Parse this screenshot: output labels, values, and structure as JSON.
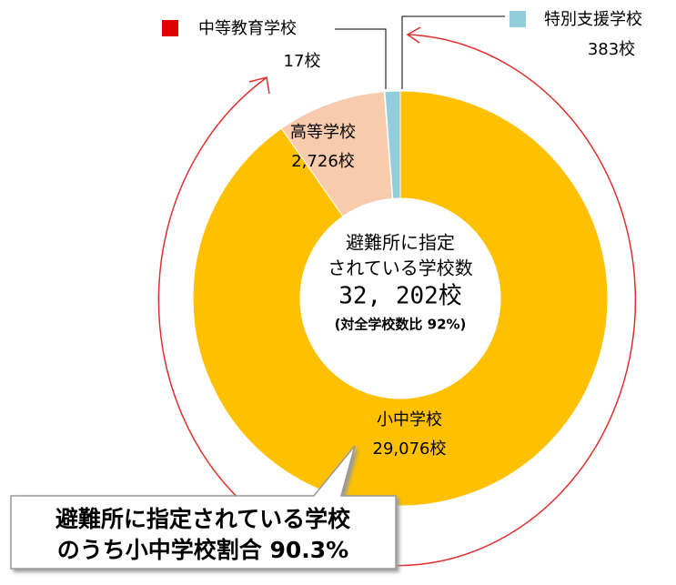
{
  "chart_data": {
    "type": "pie",
    "categories": [
      "小中学校",
      "高等学校",
      "中等教育学校",
      "特別支援学校"
    ],
    "values": [
      29076,
      2726,
      17,
      383
    ],
    "value_labels": [
      "29,076校",
      "2,726校",
      "17校",
      "383校"
    ],
    "colors": [
      "#ffc000",
      "#f8cbad",
      "#e00000",
      "#92cddc"
    ],
    "center_text": [
      "避難所に指定",
      "されている学校数",
      "32, 202校",
      "(対全学校数比 92%)"
    ],
    "callout": [
      "避難所に指定されている学校",
      "のうち小中学校割合 90.3%"
    ]
  }
}
